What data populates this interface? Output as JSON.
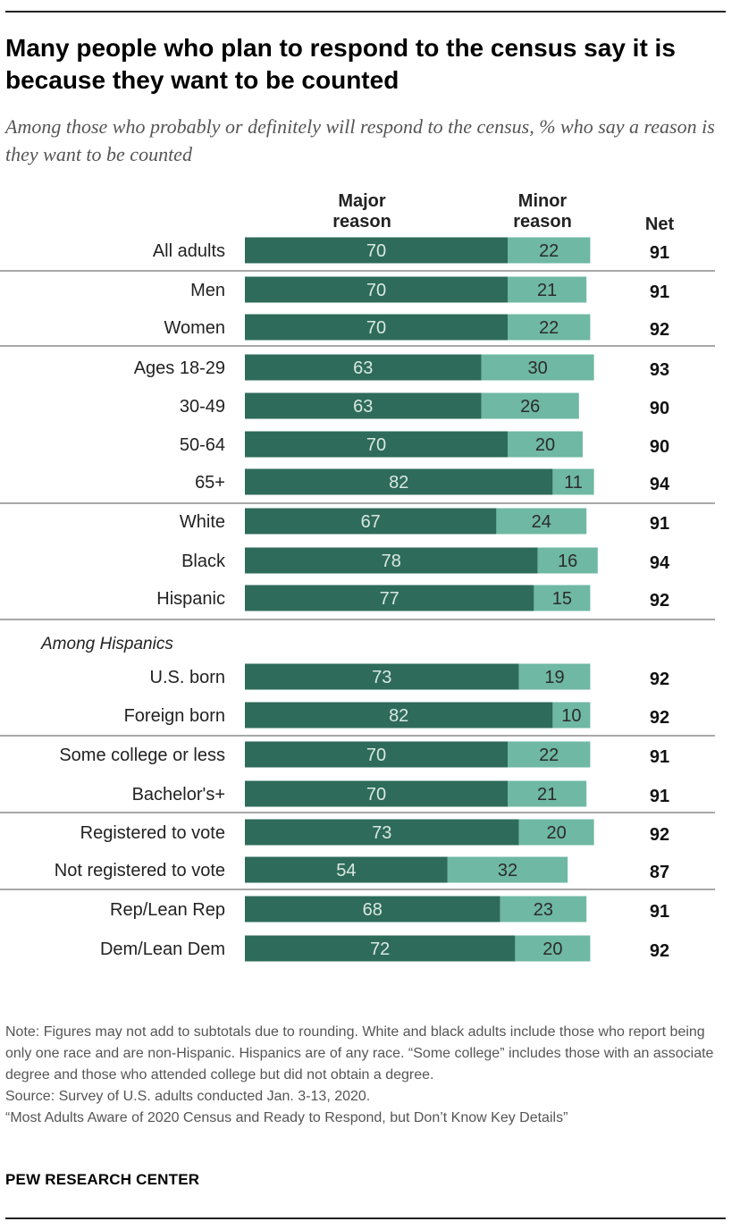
{
  "title": "Many people who plan to respond to the census say it is because they want to be counted",
  "subtitle": "Among those who probably or definitely will respond to the census, % who say a reason is they want to be counted",
  "chart_data": {
    "type": "bar",
    "orientation": "horizontal",
    "stacked": true,
    "series": [
      {
        "name": "Major reason",
        "color": "#2e6b5a",
        "label_color": "#d9e8e2"
      },
      {
        "name": "Minor reason",
        "color": "#6fb8a3",
        "label_color": "#2b2b2b"
      }
    ],
    "net_label": "Net",
    "section_header": "Among Hispanics",
    "rows": [
      {
        "label": "All adults",
        "major": 70,
        "minor": 22,
        "net": 91,
        "group": 0
      },
      {
        "label": "Men",
        "major": 70,
        "minor": 21,
        "net": 91,
        "group": 1
      },
      {
        "label": "Women",
        "major": 70,
        "minor": 22,
        "net": 92,
        "group": 1
      },
      {
        "label": "Ages 18-29",
        "major": 63,
        "minor": 30,
        "net": 93,
        "group": 2
      },
      {
        "label": "30-49",
        "major": 63,
        "minor": 26,
        "net": 90,
        "group": 2
      },
      {
        "label": "50-64",
        "major": 70,
        "minor": 20,
        "net": 90,
        "group": 2
      },
      {
        "label": "65+",
        "major": 82,
        "minor": 11,
        "net": 94,
        "group": 2
      },
      {
        "label": "White",
        "major": 67,
        "minor": 24,
        "net": 91,
        "group": 3
      },
      {
        "label": "Black",
        "major": 78,
        "minor": 16,
        "net": 94,
        "group": 3
      },
      {
        "label": "Hispanic",
        "major": 77,
        "minor": 15,
        "net": 92,
        "group": 3
      },
      {
        "label": "U.S. born",
        "major": 73,
        "minor": 19,
        "net": 92,
        "group": 4
      },
      {
        "label": "Foreign born",
        "major": 82,
        "minor": 10,
        "net": 92,
        "group": 4
      },
      {
        "label": "Some college or less",
        "major": 70,
        "minor": 22,
        "net": 91,
        "group": 5
      },
      {
        "label": "Bachelor's+",
        "major": 70,
        "minor": 21,
        "net": 91,
        "group": 5
      },
      {
        "label": "Registered to vote",
        "major": 73,
        "minor": 20,
        "net": 92,
        "group": 6
      },
      {
        "label": "Not registered to vote",
        "major": 54,
        "minor": 32,
        "net": 87,
        "group": 6
      },
      {
        "label": "Rep/Lean Rep",
        "major": 68,
        "minor": 23,
        "net": 91,
        "group": 7
      },
      {
        "label": "Dem/Lean Dem",
        "major": 72,
        "minor": 20,
        "net": 92,
        "group": 7
      }
    ]
  },
  "notes": [
    "Note: Figures may not add to subtotals due to rounding. White and black adults include those who report being only one race and are non-Hispanic. Hispanics are of any race. “Some college” includes those with an associate degree and those who attended college but did not obtain a degree.",
    "Source: Survey of U.S. adults conducted Jan. 3-13, 2020.",
    "“Most Adults Aware of 2020 Census and Ready to Respond, but Don’t Know Key Details”"
  ],
  "brand": "PEW RESEARCH CENTER"
}
